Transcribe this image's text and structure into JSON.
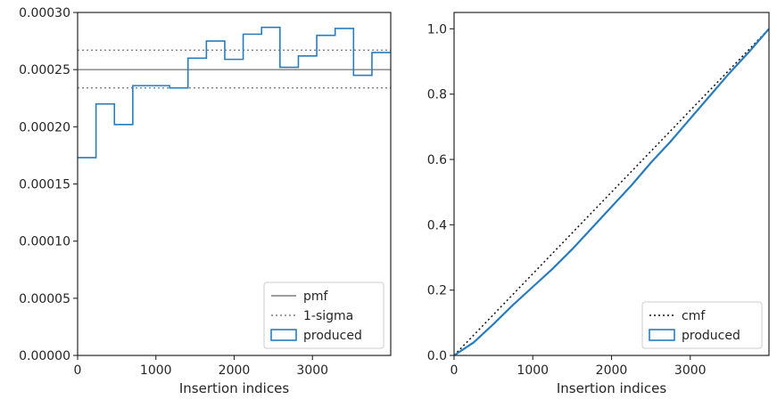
{
  "chart_data": [
    {
      "type": "step",
      "xlabel": "Insertion indices",
      "ylabel": "",
      "xlim": [
        0,
        4000
      ],
      "ylim": [
        0,
        0.0003
      ],
      "xticks": [
        "0",
        "1000",
        "2000",
        "3000"
      ],
      "yticks": [
        "0.00000",
        "0.00005",
        "0.00010",
        "0.00015",
        "0.00020",
        "0.00025",
        "0.00030"
      ],
      "bin_edges": [
        0,
        235,
        470,
        705,
        940,
        1175,
        1410,
        1645,
        1880,
        2115,
        2350,
        2585,
        2820,
        3055,
        3290,
        3525,
        3760,
        4000
      ],
      "series": [
        {
          "name": "produced",
          "style": "step",
          "color": "#2b7bba",
          "values": [
            0.000173,
            0.00022,
            0.000202,
            0.000236,
            0.000236,
            0.000234,
            0.00026,
            0.000275,
            0.000259,
            0.000281,
            0.000287,
            0.000252,
            0.000262,
            0.00028,
            0.000286,
            0.000245,
            0.000265
          ]
        }
      ],
      "reference_lines": {
        "pmf": {
          "name": "pmf",
          "value": 0.00025,
          "color": "#7f7f7f",
          "style": "solid"
        },
        "sigma": {
          "name": "1-sigma",
          "values": [
            0.000267,
            0.000234
          ],
          "color": "#7f7f7f",
          "style": "dotted"
        }
      },
      "legend": {
        "placement": "lower-right",
        "entries": [
          "pmf",
          "1-sigma",
          "produced"
        ]
      }
    },
    {
      "type": "line",
      "xlabel": "Insertion indices",
      "ylabel": "",
      "xlim": [
        0,
        4000
      ],
      "ylim": [
        0,
        1.05
      ],
      "xticks": [
        "0",
        "1000",
        "2000",
        "3000"
      ],
      "yticks": [
        "0.0",
        "0.2",
        "0.4",
        "0.6",
        "0.8",
        "1.0"
      ],
      "series": [
        {
          "name": "cmf",
          "style": "dotted",
          "color": "#111111",
          "x": [
            0,
            4000
          ],
          "y": [
            0,
            1.0
          ]
        },
        {
          "name": "produced",
          "style": "solid",
          "color": "#2b7bba",
          "x": [
            0,
            250,
            500,
            750,
            1000,
            1250,
            1500,
            1750,
            2000,
            2250,
            2500,
            2750,
            3000,
            3250,
            3500,
            3750,
            4000
          ],
          "y": [
            0,
            0.04,
            0.096,
            0.155,
            0.21,
            0.265,
            0.325,
            0.39,
            0.455,
            0.52,
            0.59,
            0.655,
            0.725,
            0.795,
            0.865,
            0.93,
            1.0
          ]
        }
      ],
      "legend": {
        "placement": "lower-right",
        "entries": [
          "cmf",
          "produced"
        ]
      }
    }
  ]
}
